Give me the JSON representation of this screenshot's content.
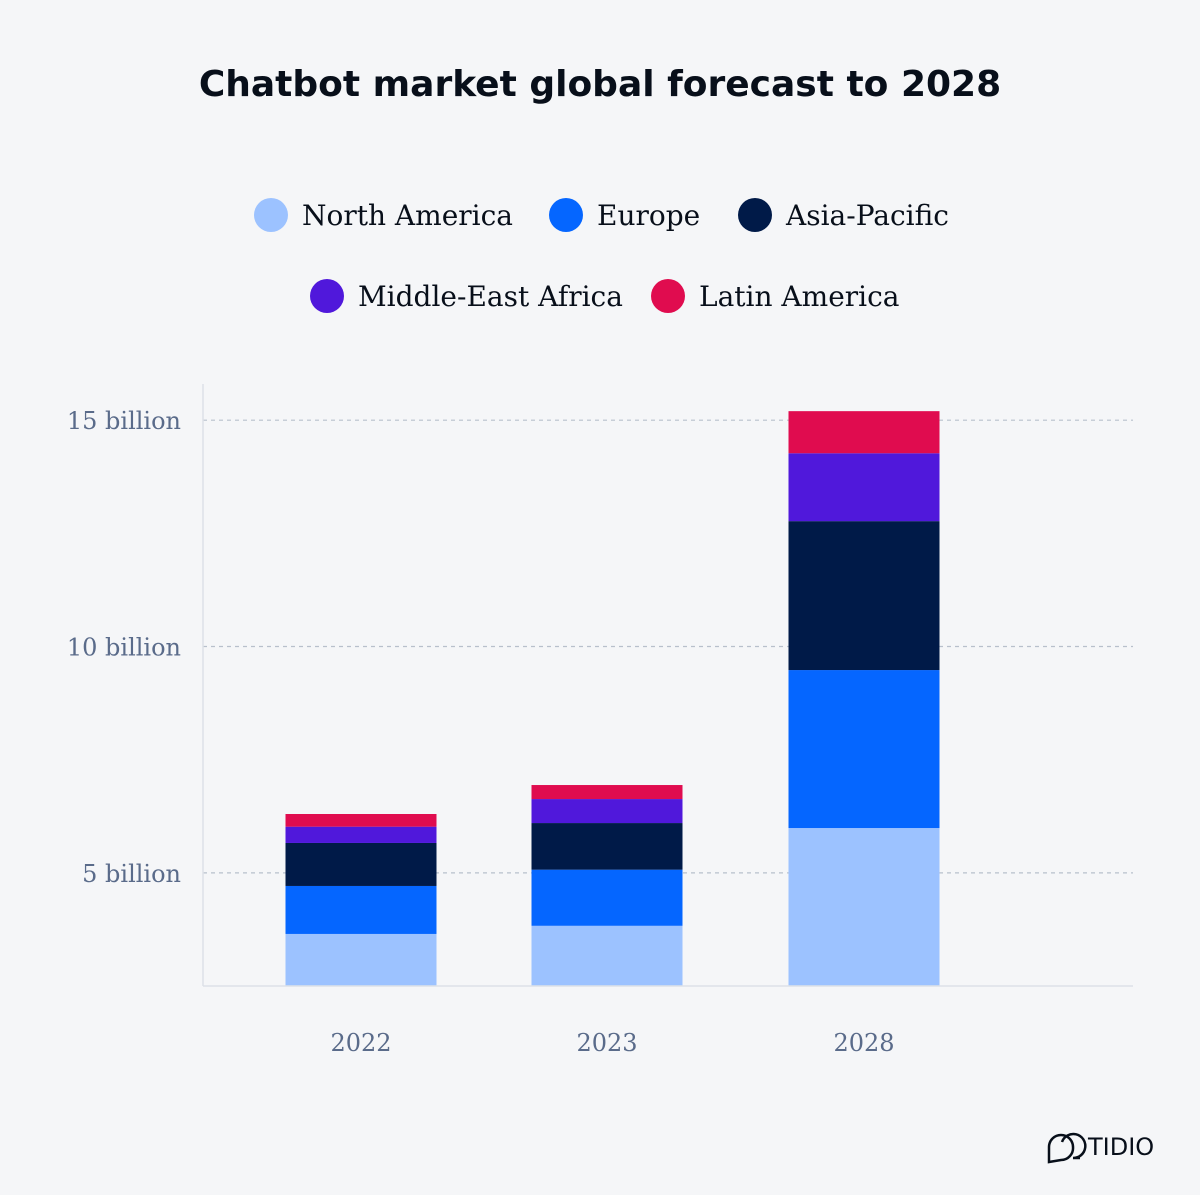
{
  "chart_data": {
    "type": "bar",
    "stacked": true,
    "title": "Chatbot market global forecast to 2028",
    "categories": [
      "2022",
      "2023",
      "2028"
    ],
    "series": [
      {
        "name": "North America",
        "color": "#9cc2ff",
        "values": [
          3.65,
          3.83,
          5.99
        ]
      },
      {
        "name": "Europe",
        "color": "#0566ff",
        "values": [
          1.06,
          1.24,
          3.49
        ]
      },
      {
        "name": "Asia-Pacific",
        "color": "#001a48",
        "values": [
          0.95,
          1.03,
          3.29
        ]
      },
      {
        "name": "Middle-East Africa",
        "color": "#5018db",
        "values": [
          0.36,
          0.53,
          1.5
        ]
      },
      {
        "name": "Latin America",
        "color": "#e00c4f",
        "values": [
          0.28,
          0.31,
          0.93
        ]
      }
    ],
    "yticks": [
      {
        "value": 5,
        "label": "5 billion"
      },
      {
        "value": 10,
        "label": "10 billion"
      },
      {
        "value": 15,
        "label": "15 billion"
      }
    ],
    "ylim": [
      2.5,
      15.8
    ],
    "grid": true,
    "legend_placement": "top",
    "xlabel": "",
    "ylabel": ""
  },
  "brand": {
    "logo_text": "TIDIO"
  }
}
